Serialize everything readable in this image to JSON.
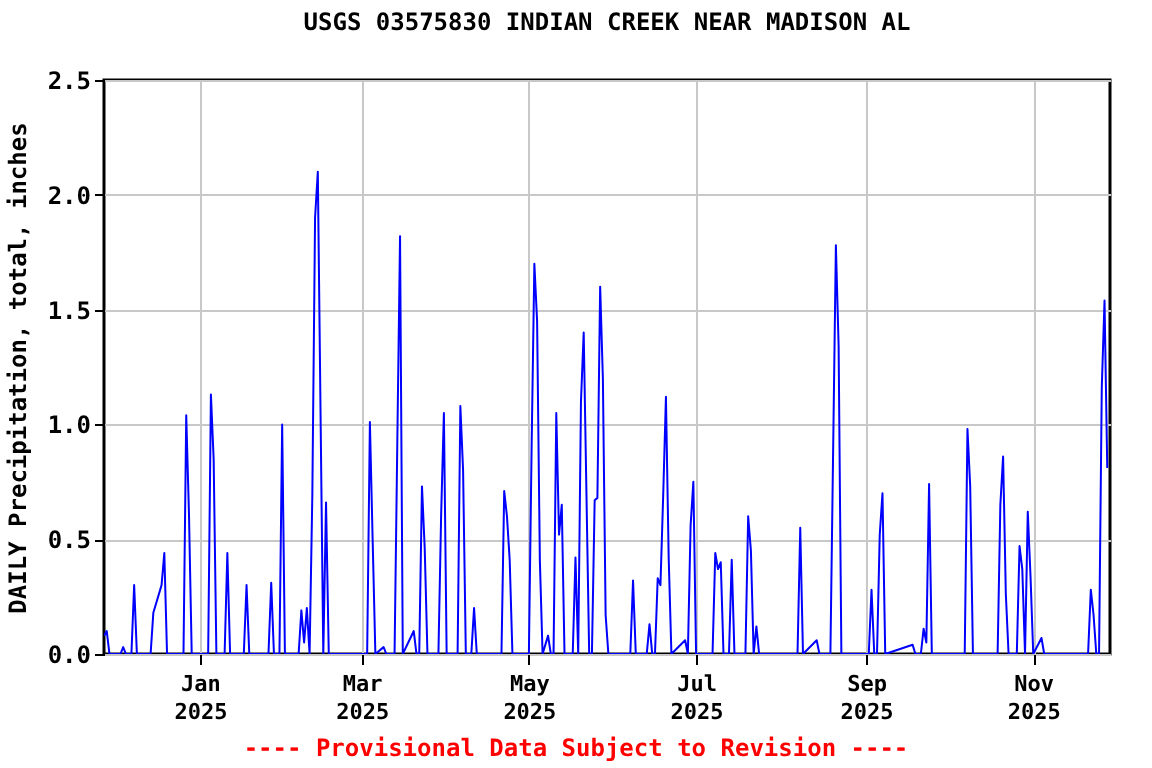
{
  "chart_data": {
    "type": "line",
    "title": "USGS 03575830 INDIAN CREEK NEAR MADISON AL",
    "ylabel": "DAILY Precipitation, total, inches",
    "annotations": [
      "---- Provisional Data Subject to Revision ----"
    ],
    "x": [
      "2024-11-27",
      "2024-11-28",
      "2024-11-29",
      "2024-12-03",
      "2024-12-04",
      "2024-12-05",
      "2024-12-07",
      "2024-12-08",
      "2024-12-09",
      "2024-12-14",
      "2024-12-15",
      "2024-12-18",
      "2024-12-19",
      "2024-12-20",
      "2024-12-26",
      "2024-12-27",
      "2024-12-28",
      "2024-12-29",
      "2025-01-04",
      "2025-01-05",
      "2025-01-06",
      "2025-01-07",
      "2025-01-10",
      "2025-01-11",
      "2025-01-12",
      "2025-01-17",
      "2025-01-18",
      "2025-01-19",
      "2025-01-26",
      "2025-01-27",
      "2025-01-28",
      "2025-01-30",
      "2025-01-31",
      "2025-02-01",
      "2025-02-06",
      "2025-02-07",
      "2025-02-08",
      "2025-02-09",
      "2025-02-10",
      "2025-02-11",
      "2025-02-12",
      "2025-02-13",
      "2025-02-14",
      "2025-02-15",
      "2025-02-16",
      "2025-02-17",
      "2025-03-03",
      "2025-03-04",
      "2025-03-05",
      "2025-03-06",
      "2025-03-09",
      "2025-03-10",
      "2025-03-13",
      "2025-03-14",
      "2025-03-15",
      "2025-03-16",
      "2025-03-20",
      "2025-03-21",
      "2025-03-22",
      "2025-03-23",
      "2025-03-24",
      "2025-03-25",
      "2025-03-29",
      "2025-03-30",
      "2025-03-31",
      "2025-04-01",
      "2025-04-05",
      "2025-04-06",
      "2025-04-07",
      "2025-04-08",
      "2025-04-10",
      "2025-04-11",
      "2025-04-12",
      "2025-04-21",
      "2025-04-22",
      "2025-04-23",
      "2025-04-24",
      "2025-04-25",
      "2025-05-01",
      "2025-05-02",
      "2025-05-03",
      "2025-05-04",
      "2025-05-05",
      "2025-05-06",
      "2025-05-08",
      "2025-05-09",
      "2025-05-10",
      "2025-05-11",
      "2025-05-12",
      "2025-05-13",
      "2025-05-14",
      "2025-05-17",
      "2025-05-18",
      "2025-05-19",
      "2025-05-20",
      "2025-05-21",
      "2025-05-22",
      "2025-05-23",
      "2025-05-24",
      "2025-05-25",
      "2025-05-26",
      "2025-05-27",
      "2025-05-28",
      "2025-05-29",
      "2025-05-30",
      "2025-06-07",
      "2025-06-08",
      "2025-06-09",
      "2025-06-13",
      "2025-06-14",
      "2025-06-15",
      "2025-06-16",
      "2025-06-17",
      "2025-06-18",
      "2025-06-19",
      "2025-06-20",
      "2025-06-21",
      "2025-06-22",
      "2025-06-27",
      "2025-06-28",
      "2025-06-29",
      "2025-06-30",
      "2025-07-01",
      "2025-07-07",
      "2025-07-08",
      "2025-07-09",
      "2025-07-10",
      "2025-07-11",
      "2025-07-13",
      "2025-07-14",
      "2025-07-15",
      "2025-07-19",
      "2025-07-20",
      "2025-07-21",
      "2025-07-22",
      "2025-07-23",
      "2025-07-24",
      "2025-08-07",
      "2025-08-08",
      "2025-08-09",
      "2025-08-14",
      "2025-08-15",
      "2025-08-19",
      "2025-08-20",
      "2025-08-21",
      "2025-08-22",
      "2025-08-23",
      "2025-09-02",
      "2025-09-03",
      "2025-09-04",
      "2025-09-05",
      "2025-09-06",
      "2025-09-07",
      "2025-09-08",
      "2025-09-18",
      "2025-09-19",
      "2025-09-21",
      "2025-09-22",
      "2025-09-23",
      "2025-09-24",
      "2025-09-25",
      "2025-10-07",
      "2025-10-08",
      "2025-10-09",
      "2025-10-10",
      "2025-10-19",
      "2025-10-20",
      "2025-10-21",
      "2025-10-22",
      "2025-10-23",
      "2025-10-26",
      "2025-10-27",
      "2025-10-28",
      "2025-10-29",
      "2025-10-30",
      "2025-10-31",
      "2025-11-01",
      "2025-11-04",
      "2025-11-05",
      "2025-11-21",
      "2025-11-22",
      "2025-11-23",
      "2025-11-24",
      "2025-11-25",
      "2025-11-26",
      "2025-11-27",
      "2025-11-28"
    ],
    "series": [
      {
        "color": "#0000ff",
        "values": [
          0.08,
          0.1,
          0,
          0,
          0.03,
          0,
          0,
          0.3,
          0,
          0,
          0.18,
          0.3,
          0.44,
          0,
          0,
          1.04,
          0.61,
          0,
          0,
          1.13,
          0.85,
          0,
          0,
          0.44,
          0,
          0,
          0.3,
          0,
          0,
          0.31,
          0,
          0,
          1.0,
          0,
          0,
          0.19,
          0.05,
          0.2,
          0,
          0.69,
          1.9,
          2.1,
          1.05,
          0,
          0.66,
          0,
          0,
          1.01,
          0.5,
          0,
          0.03,
          0,
          0,
          0.92,
          1.82,
          0,
          0.1,
          0,
          0,
          0.73,
          0.46,
          0,
          0,
          0.61,
          1.05,
          0,
          0,
          1.08,
          0.8,
          0,
          0,
          0.2,
          0,
          0,
          0.71,
          0.6,
          0.41,
          0,
          0,
          0.9,
          1.7,
          1.45,
          0.41,
          0,
          0.08,
          0,
          0,
          1.05,
          0.52,
          0.65,
          0,
          0,
          0.42,
          0,
          1.1,
          1.4,
          0.7,
          0,
          0,
          0.67,
          0.68,
          1.6,
          1.2,
          0.17,
          0,
          0,
          0.32,
          0,
          0,
          0.13,
          0,
          0,
          0.33,
          0.3,
          0.69,
          1.12,
          0.42,
          0,
          0.06,
          0,
          0.56,
          0.75,
          0,
          0,
          0.44,
          0.37,
          0.4,
          0,
          0,
          0.41,
          0,
          0,
          0.6,
          0.45,
          0,
          0.12,
          0,
          0,
          0.55,
          0,
          0.06,
          0,
          0,
          0.89,
          1.78,
          1.34,
          0,
          0,
          0.28,
          0,
          0,
          0.52,
          0.7,
          0,
          0.04,
          0,
          0,
          0.11,
          0.05,
          0.74,
          0,
          0,
          0.98,
          0.73,
          0,
          0,
          0.65,
          0.86,
          0.26,
          0,
          0,
          0.47,
          0.37,
          0,
          0.62,
          0.34,
          0,
          0.07,
          0,
          0,
          0.28,
          0.17,
          0,
          0,
          1.16,
          1.54,
          0.81
        ]
      }
    ],
    "xlim": [
      "2024-11-27",
      "2025-11-29"
    ],
    "xticks": [
      {
        "value": "2025-01-01",
        "label": "Jan 2025"
      },
      {
        "value": "2025-03-01",
        "label": "Mar 2025"
      },
      {
        "value": "2025-05-01",
        "label": "May 2025"
      },
      {
        "value": "2025-07-01",
        "label": "Jul 2025"
      },
      {
        "value": "2025-09-01",
        "label": "Sep 2025"
      },
      {
        "value": "2025-11-01",
        "label": "Nov 2025"
      }
    ],
    "ylim": [
      0,
      2.5
    ],
    "yticks": [
      {
        "value": 0,
        "label": "0.0"
      },
      {
        "value": 0.5,
        "label": "0.5"
      },
      {
        "value": 1,
        "label": "1.0"
      },
      {
        "value": 1.5,
        "label": "1.5"
      },
      {
        "value": 2,
        "label": "2.0"
      },
      {
        "value": 2.5,
        "label": "2.5"
      }
    ],
    "grid": true
  }
}
